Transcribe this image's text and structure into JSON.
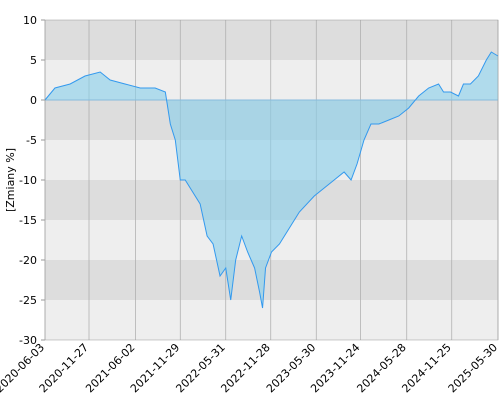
{
  "chart_data": {
    "type": "area",
    "y_label": "[Zmiany %]",
    "x": [
      "2020-06-03",
      "2020-07-13",
      "2020-09-12",
      "2020-11-11",
      "2021-01-11",
      "2021-02-20",
      "2021-04-21",
      "2021-06-21",
      "2021-08-20",
      "2021-09-30",
      "2021-10-20",
      "2021-11-09",
      "2021-11-29",
      "2021-12-19",
      "2022-01-08",
      "2022-02-17",
      "2022-03-17",
      "2022-04-10",
      "2022-05-08",
      "2022-05-31",
      "2022-06-20",
      "2022-07-10",
      "2022-08-03",
      "2022-08-27",
      "2022-09-24",
      "2022-10-14",
      "2022-10-26",
      "2022-11-07",
      "2022-12-01",
      "2023-01-02",
      "2023-02-11",
      "2023-03-23",
      "2023-05-22",
      "2023-07-01",
      "2023-08-10",
      "2023-09-19",
      "2023-10-17",
      "2023-11-10",
      "2023-12-08",
      "2024-01-05",
      "2024-02-06",
      "2024-03-17",
      "2024-04-26",
      "2024-06-05",
      "2024-07-15",
      "2024-08-24",
      "2024-10-03",
      "2024-10-23",
      "2024-11-20",
      "2024-12-22",
      "2025-01-11",
      "2025-02-08",
      "2025-03-12",
      "2025-04-13",
      "2025-05-03",
      "2025-05-30"
    ],
    "values": [
      0,
      1.5,
      2,
      3,
      3.5,
      2.5,
      2,
      1.5,
      1.5,
      1,
      -3,
      -5,
      -10,
      -10,
      -11,
      -13,
      -17,
      -18,
      -22,
      -21,
      -25,
      -20,
      -17,
      -19,
      -21,
      -24,
      -26,
      -21,
      -19,
      -18,
      -16,
      -14,
      -12,
      -11,
      -10,
      -9,
      -10,
      -8,
      -5,
      -3,
      -3,
      -2.5,
      -2,
      -1,
      0.5,
      1.5,
      2,
      1,
      1,
      0.5,
      2,
      2,
      3,
      5,
      6,
      5.5
    ],
    "color": "#3399ee",
    "fill_color": "rgba(135,206,235,0.6)",
    "xlim": [
      "2020-06-03",
      "2025-05-30"
    ],
    "xticks": [
      "2020-06-03",
      "2020-11-27",
      "2021-06-02",
      "2021-11-29",
      "2022-05-31",
      "2022-11-28",
      "2023-05-30",
      "2023-11-24",
      "2024-05-28",
      "2024-11-25",
      "2025-05-30"
    ],
    "ylim": [
      -30,
      10
    ],
    "yticks": [
      -30,
      -25,
      -20,
      -15,
      -10,
      -5,
      0,
      5,
      10
    ],
    "grid": true,
    "band_colors": [
      "#dddddd",
      "#eeeeee"
    ]
  }
}
